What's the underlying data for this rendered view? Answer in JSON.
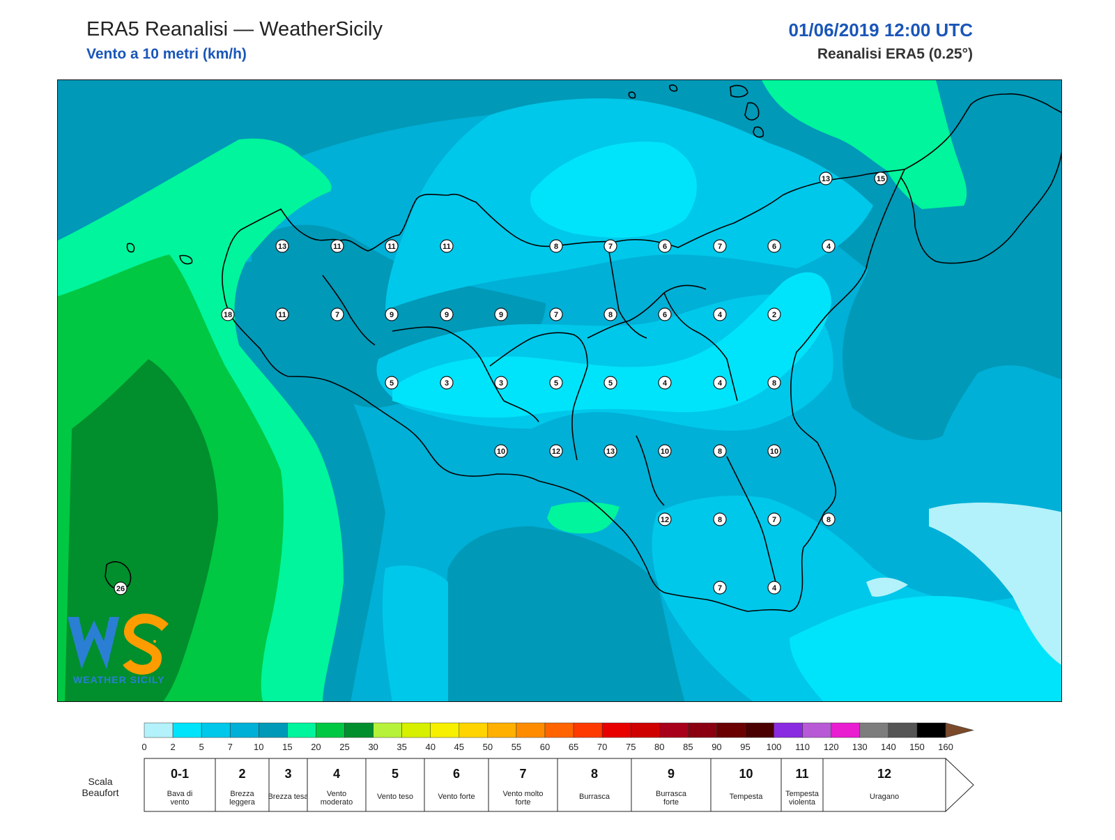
{
  "header": {
    "title": "ERA5 Reanalisi — WeatherSicily",
    "subtitle": "Vento a 10 metri (km/h)",
    "datetime": "01/06/2019 12:00 UTC",
    "source": "Reanalisi ERA5 (0.25°)"
  },
  "logo": {
    "icon": "ws-logo-icon",
    "text": "WEATHER SICILY"
  },
  "map": {
    "field": "wind-speed-10m",
    "unit": "km/h",
    "colors": {
      "land_outline": "#000000",
      "zone_0_2": "#b3f2fb",
      "zone_2_5": "#00e4fb",
      "zone_5_7": "#00c8ea",
      "zone_7_10": "#00b0d6",
      "zone_10_15": "#0099b8",
      "zone_15_20": "#00f59c",
      "zone_20_25": "#00c843",
      "zone_25_30": "#008f2c"
    },
    "stations": [
      {
        "v": "13"
      },
      {
        "v": "11"
      },
      {
        "v": "11"
      },
      {
        "v": "11"
      },
      {
        "v": "8"
      },
      {
        "v": "7"
      },
      {
        "v": "6"
      },
      {
        "v": "7"
      },
      {
        "v": "6"
      },
      {
        "v": "4"
      },
      {
        "v": "18"
      },
      {
        "v": "11"
      },
      {
        "v": "7"
      },
      {
        "v": "9"
      },
      {
        "v": "9"
      },
      {
        "v": "9"
      },
      {
        "v": "7"
      },
      {
        "v": "8"
      },
      {
        "v": "6"
      },
      {
        "v": "4"
      },
      {
        "v": "2"
      },
      {
        "v": "5"
      },
      {
        "v": "3"
      },
      {
        "v": "3"
      },
      {
        "v": "5"
      },
      {
        "v": "5"
      },
      {
        "v": "4"
      },
      {
        "v": "4"
      },
      {
        "v": "8"
      },
      {
        "v": "10"
      },
      {
        "v": "12"
      },
      {
        "v": "13"
      },
      {
        "v": "10"
      },
      {
        "v": "8"
      },
      {
        "v": "10"
      },
      {
        "v": "12"
      },
      {
        "v": "8"
      },
      {
        "v": "7"
      },
      {
        "v": "8"
      },
      {
        "v": "7"
      },
      {
        "v": "4"
      },
      {
        "v": "26"
      },
      {
        "v": "13"
      },
      {
        "v": "15"
      }
    ]
  },
  "colorbar": {
    "ticks": [
      "0",
      "2",
      "5",
      "7",
      "10",
      "15",
      "20",
      "25",
      "30",
      "35",
      "40",
      "45",
      "50",
      "55",
      "60",
      "65",
      "70",
      "75",
      "80",
      "85",
      "90",
      "95",
      "100",
      "110",
      "120",
      "130",
      "140",
      "150",
      "160"
    ],
    "colors": [
      "#b3f2fb",
      "#00e4fb",
      "#00c8ea",
      "#00b0d6",
      "#0099b8",
      "#00f59c",
      "#00c843",
      "#008f2c",
      "#b7f23a",
      "#d7f000",
      "#f7f000",
      "#ffd400",
      "#ffb000",
      "#ff8c00",
      "#ff6400",
      "#ff3a00",
      "#e80000",
      "#cf0000",
      "#a8001a",
      "#8a0010",
      "#6a0000",
      "#4a0000",
      "#8a2be2",
      "#b85ad6",
      "#e81ed0",
      "#7d7d7d",
      "#555555",
      "#000000",
      "#7a4a2a",
      "#c8864a"
    ]
  },
  "beaufort": {
    "label": "Scala Beaufort",
    "classes": [
      {
        "num": "0-1",
        "name": "Bava di vento"
      },
      {
        "num": "2",
        "name": "Brezza leggera"
      },
      {
        "num": "3",
        "name": "Brezza tesa"
      },
      {
        "num": "4",
        "name": "Vento moderato"
      },
      {
        "num": "5",
        "name": "Vento teso"
      },
      {
        "num": "6",
        "name": "Vento forte"
      },
      {
        "num": "7",
        "name": "Vento molto forte"
      },
      {
        "num": "8",
        "name": "Burrasca"
      },
      {
        "num": "9",
        "name": "Burrasca forte"
      },
      {
        "num": "10",
        "name": "Tempesta"
      },
      {
        "num": "11",
        "name": "Tempesta violenta"
      },
      {
        "num": "12",
        "name": "Uragano"
      }
    ]
  }
}
